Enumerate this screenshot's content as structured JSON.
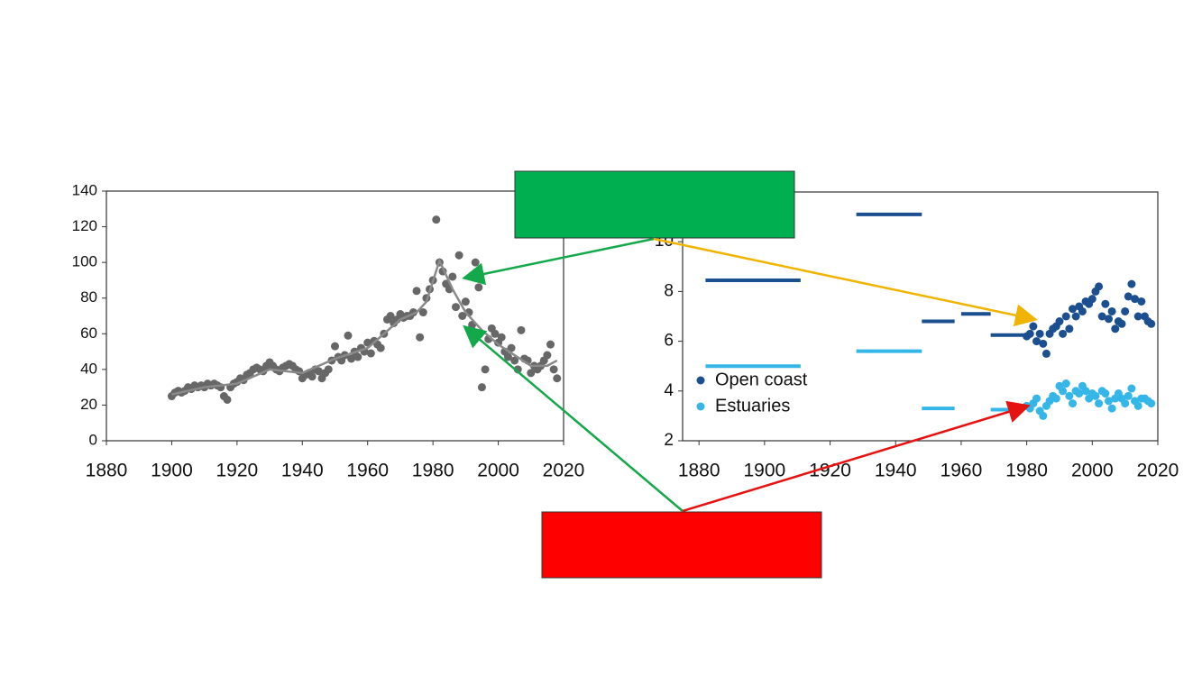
{
  "chart_data": [
    {
      "type": "scatter",
      "x": [
        1900,
        1901,
        1902,
        1903,
        1904,
        1905,
        1906,
        1907,
        1908,
        1909,
        1910,
        1911,
        1912,
        1913,
        1914,
        1915,
        1916,
        1917,
        1918,
        1919,
        1920,
        1921,
        1922,
        1923,
        1924,
        1925,
        1926,
        1927,
        1928,
        1929,
        1930,
        1931,
        1932,
        1933,
        1934,
        1935,
        1936,
        1937,
        1938,
        1939,
        1940,
        1941,
        1942,
        1943,
        1944,
        1945,
        1946,
        1947,
        1948,
        1949,
        1950,
        1951,
        1952,
        1953,
        1954,
        1955,
        1956,
        1957,
        1958,
        1959,
        1960,
        1961,
        1962,
        1963,
        1964,
        1965,
        1966,
        1967,
        1968,
        1969,
        1970,
        1971,
        1972,
        1973,
        1974,
        1975,
        1976,
        1977,
        1978,
        1979,
        1980,
        1981,
        1982,
        1983,
        1984,
        1985,
        1986,
        1987,
        1988,
        1989,
        1990,
        1991,
        1992,
        1993,
        1994,
        1995,
        1996,
        1997,
        1998,
        1999,
        2000,
        2001,
        2002,
        2003,
        2004,
        2005,
        2006,
        2007,
        2008,
        2009,
        2010,
        2011,
        2012,
        2013,
        2014,
        2015,
        2016,
        2017,
        2018
      ],
      "series": [
        {
          "color": "#676767",
          "values": [
            25,
            27,
            28,
            27,
            28,
            30,
            29,
            31,
            30,
            31,
            30,
            32,
            31,
            32,
            31,
            30,
            25,
            23,
            30,
            32,
            33,
            35,
            34,
            37,
            38,
            40,
            41,
            40,
            39,
            42,
            44,
            42,
            40,
            39,
            41,
            42,
            43,
            42,
            40,
            39,
            35,
            37,
            38,
            36,
            40,
            39,
            35,
            38,
            40,
            45,
            53,
            47,
            45,
            48,
            59,
            46,
            50,
            47,
            52,
            50,
            55,
            49,
            56,
            54,
            52,
            60,
            68,
            70,
            66,
            68,
            71,
            69,
            70,
            70,
            72,
            84,
            58,
            72,
            80,
            85,
            90,
            124,
            100,
            95,
            88,
            85,
            92,
            75,
            104,
            70,
            78,
            72,
            65,
            100,
            86,
            30,
            40,
            57,
            63,
            60,
            55,
            58,
            50,
            47,
            52,
            45,
            40,
            62,
            46,
            45,
            38,
            42,
            40,
            42,
            45,
            48,
            54,
            40,
            35
          ]
        }
      ],
      "trend": {
        "color": "#8a8a8a",
        "x": [
          1900,
          1910,
          1920,
          1930,
          1940,
          1950,
          1960,
          1970,
          1975,
          1978,
          1982,
          1986,
          1990,
          1995,
          2000,
          2005,
          2010,
          2015,
          2018
        ],
        "values": [
          26,
          30,
          32,
          40,
          38,
          46,
          52,
          68,
          72,
          78,
          101,
          85,
          72,
          62,
          54,
          48,
          42,
          42,
          45
        ]
      },
      "xlim": [
        1880,
        2020
      ],
      "xticks": [
        1880,
        1900,
        1920,
        1940,
        1960,
        1980,
        2000,
        2020
      ],
      "ylim": [
        0,
        140
      ],
      "yticks": [
        0,
        20,
        40,
        60,
        80,
        100,
        120,
        140
      ]
    },
    {
      "type": "scatter",
      "x": [
        1980,
        1981,
        1982,
        1983,
        1984,
        1985,
        1986,
        1987,
        1988,
        1989,
        1990,
        1991,
        1992,
        1993,
        1994,
        1995,
        1996,
        1997,
        1998,
        1999,
        2000,
        2001,
        2002,
        2003,
        2004,
        2005,
        2006,
        2007,
        2008,
        2009,
        2010,
        2011,
        2012,
        2013,
        2014,
        2015,
        2016,
        2017,
        2018
      ],
      "series": [
        {
          "name": "Open coast",
          "color": "#1c4f8f",
          "values": [
            6.2,
            6.3,
            6.6,
            6.0,
            6.3,
            5.9,
            5.5,
            6.3,
            6.5,
            6.6,
            6.8,
            6.3,
            7.0,
            6.5,
            7.3,
            7.0,
            7.4,
            7.2,
            7.6,
            7.5,
            7.7,
            8.0,
            8.2,
            7.0,
            7.5,
            6.9,
            7.2,
            6.5,
            6.8,
            6.7,
            7.2,
            7.8,
            8.3,
            7.7,
            7.0,
            7.6,
            7.0,
            6.8,
            6.7
          ],
          "segments": [
            {
              "x0": 1882,
              "x1": 1911,
              "value": 8.45
            },
            {
              "x0": 1928,
              "x1": 1948,
              "value": 11.1
            },
            {
              "x0": 1948,
              "x1": 1958,
              "value": 6.8
            },
            {
              "x0": 1960,
              "x1": 1969,
              "value": 7.1
            },
            {
              "x0": 1969,
              "x1": 1980,
              "value": 6.25
            }
          ]
        },
        {
          "name": "Estuaries",
          "color": "#35b6e8",
          "values": [
            3.4,
            3.3,
            3.5,
            3.7,
            3.2,
            3.0,
            3.4,
            3.6,
            3.8,
            3.7,
            4.2,
            4.0,
            4.3,
            3.8,
            3.5,
            4.0,
            3.9,
            4.2,
            4.0,
            3.7,
            3.9,
            3.8,
            3.5,
            4.0,
            3.9,
            3.6,
            3.3,
            3.7,
            3.9,
            3.7,
            3.5,
            3.8,
            4.1,
            3.6,
            3.4,
            3.7,
            3.7,
            3.6,
            3.5
          ],
          "segments": [
            {
              "x0": 1882,
              "x1": 1911,
              "value": 5.0
            },
            {
              "x0": 1928,
              "x1": 1948,
              "value": 5.6
            },
            {
              "x0": 1948,
              "x1": 1958,
              "value": 3.3
            },
            {
              "x0": 1969,
              "x1": 1978,
              "value": 3.25
            }
          ]
        }
      ],
      "xlim": [
        1875,
        2020
      ],
      "xticks": [
        1880,
        1900,
        1920,
        1940,
        1960,
        1980,
        2000,
        2020
      ],
      "ylim": [
        2,
        12
      ],
      "yticks": [
        2,
        4,
        6,
        8,
        10
      ],
      "legend": "lower left"
    }
  ]
}
